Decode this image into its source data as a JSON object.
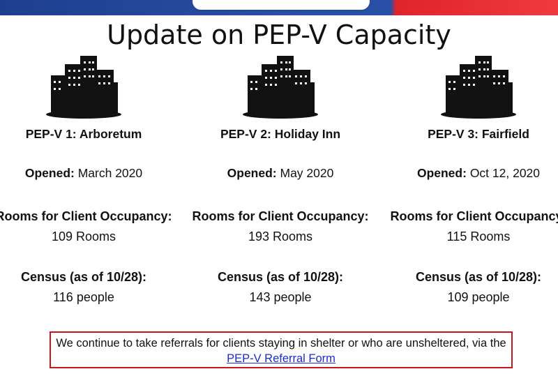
{
  "slide": {
    "title": "Update on PEP-V Capacity",
    "opened_label": "Opened:",
    "rooms_label": "Rooms for Client Occupancy:",
    "census_label": "Census (as of 10/28):"
  },
  "sites": [
    {
      "name": "PEP-V 1: Arboretum",
      "opened": "March 2020",
      "rooms": "109 Rooms",
      "census": "116 people"
    },
    {
      "name": "PEP-V 2: Holiday Inn",
      "opened": "May 2020",
      "rooms": "193 Rooms",
      "census": "143 people"
    },
    {
      "name": "PEP-V 3: Fairfield",
      "opened": "Oct 12, 2020",
      "rooms": "115 Rooms",
      "census": "109 people"
    }
  ],
  "notice": {
    "text": "We continue to take referrals for clients staying in shelter or who are unsheltered, via the",
    "link_text": "PEP-V Referral Form"
  },
  "icons": {
    "site": "building-icon"
  },
  "colors": {
    "header_blue": "#2a4fa6",
    "header_red": "#e0242c",
    "notice_border": "#c4161c",
    "link": "#1a2bd6"
  }
}
